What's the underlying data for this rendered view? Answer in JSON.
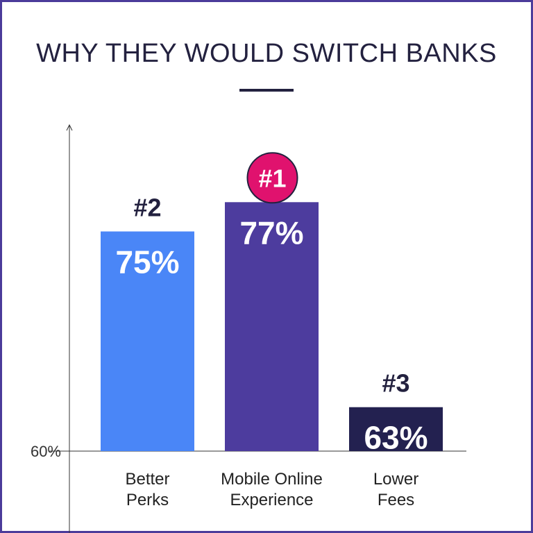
{
  "chart_data": {
    "type": "bar",
    "title": "WHY THEY WOULD SWITCH BANKS",
    "categories": [
      "Better Perks",
      "Mobile Online Experience",
      "Lower Fees"
    ],
    "category_lines": [
      [
        "Better",
        "Perks"
      ],
      [
        "Mobile Online",
        "Experience"
      ],
      [
        "Lower",
        "Fees"
      ]
    ],
    "values": [
      75,
      77,
      63
    ],
    "value_labels": [
      "75%",
      "77%",
      "63%"
    ],
    "rank_labels": [
      "#2",
      "#1",
      "#3"
    ],
    "colors": [
      "#4a86f7",
      "#4d3c9e",
      "#232150"
    ],
    "rank_badge_color": "#e0126e",
    "baseline_label": "60%",
    "ylim": [
      60,
      80
    ],
    "grid": false,
    "xlabel": "",
    "ylabel": ""
  }
}
